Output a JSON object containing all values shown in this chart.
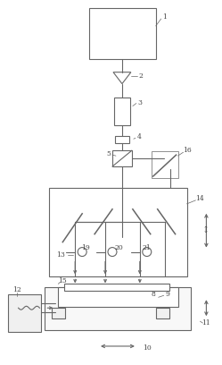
{
  "bg_color": "#ffffff",
  "lc": "#666666",
  "lw": 0.8,
  "fig_width": 2.49,
  "fig_height": 4.08,
  "dpi": 100
}
